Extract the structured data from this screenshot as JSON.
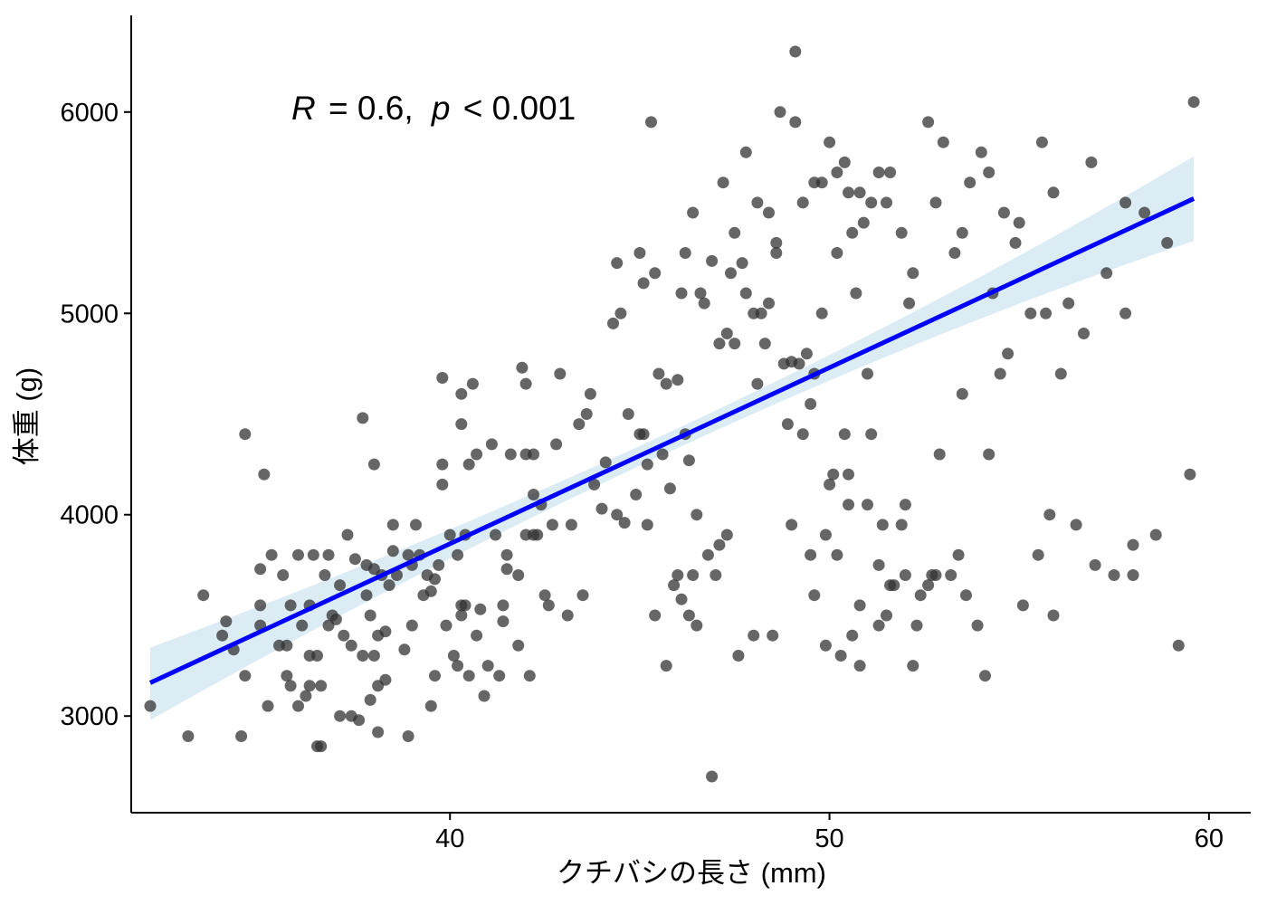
{
  "chart_data": {
    "type": "scatter",
    "title": "",
    "xlabel": "クチバシの長さ (mm)",
    "ylabel": "体重 (g)",
    "xlim": [
      31.6,
      61.1
    ],
    "ylim": [
      2520,
      6480
    ],
    "xticks": [
      40,
      50,
      60
    ],
    "yticks": [
      3000,
      4000,
      5000,
      6000
    ],
    "grid": false,
    "legend": "none",
    "annotation": {
      "r_label": "R",
      "r_value": "= 0.6,",
      "p_label": "p",
      "p_value": "< 0.001"
    },
    "colors": {
      "points": "#333333",
      "regression_line": "#0000ff",
      "confidence_band": "#dcecf4"
    },
    "regression": {
      "x_range": [
        32.1,
        59.6
      ],
      "y_at_start": 3165,
      "y_at_end": 5570,
      "band_lower_start": 2980,
      "band_upper_start": 3340,
      "band_lower_end": 5360,
      "band_upper_end": 5780
    },
    "points": [
      [
        32.1,
        3050
      ],
      [
        33.1,
        2900
      ],
      [
        33.5,
        3600
      ],
      [
        34.1,
        3470
      ],
      [
        34,
        3400
      ],
      [
        34.3,
        3330
      ],
      [
        34.5,
        2900
      ],
      [
        34.6,
        4400
      ],
      [
        34.6,
        3200
      ],
      [
        35,
        3730
      ],
      [
        35,
        3450
      ],
      [
        35.1,
        4200
      ],
      [
        35.2,
        3050
      ],
      [
        35.3,
        3800
      ],
      [
        35.5,
        3350
      ],
      [
        35.6,
        3700
      ],
      [
        35.7,
        3200
      ],
      [
        35.7,
        3350
      ],
      [
        35.8,
        3550
      ],
      [
        35.8,
        3150
      ],
      [
        36,
        3800
      ],
      [
        36,
        3050
      ],
      [
        36.1,
        3450
      ],
      [
        36.2,
        3100
      ],
      [
        36.3,
        3150
      ],
      [
        36.3,
        3550
      ],
      [
        36.3,
        3300
      ],
      [
        36.4,
        3800
      ],
      [
        36.5,
        2850
      ],
      [
        36.6,
        3150
      ],
      [
        36.6,
        2850
      ],
      [
        36.7,
        3700
      ],
      [
        36.8,
        3450
      ],
      [
        36.8,
        3800
      ],
      [
        36.9,
        3500
      ],
      [
        37,
        3480
      ],
      [
        37.1,
        3000
      ],
      [
        37.2,
        3400
      ],
      [
        37.3,
        3900
      ],
      [
        37.4,
        3350
      ],
      [
        37.4,
        3000
      ],
      [
        37.5,
        3780
      ],
      [
        37.6,
        2980
      ],
      [
        37.7,
        4480
      ],
      [
        37.7,
        3300
      ],
      [
        37.8,
        3600
      ],
      [
        37.8,
        3750
      ],
      [
        37.9,
        3500
      ],
      [
        37.9,
        3080
      ],
      [
        38,
        4250
      ],
      [
        38,
        3730
      ],
      [
        38,
        3300
      ],
      [
        38.1,
        3400
      ],
      [
        38.1,
        3150
      ],
      [
        38.1,
        2920
      ],
      [
        38.2,
        3700
      ],
      [
        38.3,
        3180
      ],
      [
        38.3,
        3420
      ],
      [
        38.5,
        3950
      ],
      [
        38.5,
        3820
      ],
      [
        38.6,
        3700
      ],
      [
        38.8,
        3330
      ],
      [
        38.9,
        3800
      ],
      [
        38.9,
        2900
      ],
      [
        39,
        3450
      ],
      [
        39,
        3750
      ],
      [
        39.1,
        3950
      ],
      [
        39.2,
        3800
      ],
      [
        39.3,
        3600
      ],
      [
        39.4,
        3700
      ],
      [
        39.5,
        3050
      ],
      [
        39.5,
        3620
      ],
      [
        39.6,
        3680
      ],
      [
        39.7,
        3750
      ],
      [
        39.8,
        4680
      ],
      [
        39.8,
        4250
      ],
      [
        39.8,
        4150
      ],
      [
        39.9,
        3450
      ],
      [
        40.1,
        3300
      ],
      [
        40.2,
        3250
      ],
      [
        40.2,
        3800
      ],
      [
        40.3,
        3550
      ],
      [
        40.3,
        3500
      ],
      [
        40.3,
        4450
      ],
      [
        40.3,
        4600
      ],
      [
        40.4,
        3900
      ],
      [
        40.4,
        3550
      ],
      [
        40.5,
        4250
      ],
      [
        40.5,
        3200
      ],
      [
        40.6,
        4650
      ],
      [
        40.7,
        3400
      ],
      [
        40.7,
        4300
      ],
      [
        40.8,
        3530
      ],
      [
        40.9,
        3100
      ],
      [
        41,
        3250
      ],
      [
        41.1,
        4350
      ],
      [
        41.3,
        3200
      ],
      [
        41.4,
        3550
      ],
      [
        41.4,
        3470
      ],
      [
        41.5,
        3800
      ],
      [
        41.5,
        3730
      ],
      [
        41.6,
        4300
      ],
      [
        41.8,
        3700
      ],
      [
        41.8,
        3350
      ],
      [
        41.9,
        4730
      ],
      [
        42,
        4650
      ],
      [
        42,
        3900
      ],
      [
        42,
        4300
      ],
      [
        42.1,
        3200
      ],
      [
        42.2,
        4300
      ],
      [
        42.2,
        3900
      ],
      [
        42.2,
        4100
      ],
      [
        42.3,
        3900
      ],
      [
        42.4,
        4050
      ],
      [
        42.5,
        3600
      ],
      [
        42.6,
        3550
      ],
      [
        42.8,
        4350
      ],
      [
        42.9,
        4700
      ],
      [
        43.2,
        3950
      ],
      [
        43.4,
        4450
      ],
      [
        43.5,
        3600
      ],
      [
        43.6,
        4500
      ],
      [
        43.7,
        4600
      ],
      [
        43.8,
        4150
      ],
      [
        44,
        4030
      ],
      [
        44.1,
        4260
      ],
      [
        44.3,
        4950
      ],
      [
        44.5,
        5000
      ],
      [
        44.6,
        3960
      ],
      [
        44.7,
        4500
      ],
      [
        44.9,
        4100
      ],
      [
        45,
        4400
      ],
      [
        45.1,
        4400
      ],
      [
        45.2,
        4250
      ],
      [
        45.4,
        3500
      ],
      [
        45.5,
        4700
      ],
      [
        45.6,
        4300
      ],
      [
        45.7,
        4650
      ],
      [
        45.8,
        4130
      ],
      [
        46,
        4670
      ],
      [
        46.1,
        3580
      ],
      [
        46.2,
        4400
      ],
      [
        46.3,
        4270
      ],
      [
        46.5,
        4000
      ],
      [
        46.6,
        5100
      ],
      [
        46.9,
        5260
      ],
      [
        47.1,
        4850
      ],
      [
        47.3,
        4900
      ],
      [
        47.5,
        4850
      ],
      [
        47.7,
        5250
      ],
      [
        47.8,
        5100
      ],
      [
        48,
        5000
      ],
      [
        48.2,
        5000
      ],
      [
        48.3,
        4850
      ],
      [
        48.4,
        5050
      ],
      [
        48.6,
        5300
      ],
      [
        48.8,
        4750
      ],
      [
        49,
        4760
      ],
      [
        49.1,
        5950
      ],
      [
        49.2,
        4750
      ],
      [
        49.4,
        4800
      ],
      [
        49.5,
        4550
      ],
      [
        49.6,
        4700
      ],
      [
        49.8,
        5000
      ],
      [
        50,
        4150
      ],
      [
        50.1,
        4200
      ],
      [
        50.2,
        5300
      ],
      [
        50.4,
        4400
      ],
      [
        50.5,
        4200
      ],
      [
        50.7,
        5100
      ],
      [
        50.8,
        3250
      ],
      [
        51,
        4700
      ],
      [
        51.1,
        4400
      ],
      [
        51.3,
        3450
      ],
      [
        51.5,
        3500
      ],
      [
        51.7,
        3650
      ],
      [
        52,
        3700
      ],
      [
        52.2,
        3250
      ],
      [
        52.4,
        3600
      ],
      [
        52.6,
        3650
      ],
      [
        52.7,
        3700
      ],
      [
        52.9,
        4300
      ],
      [
        53.2,
        3700
      ],
      [
        53.4,
        3800
      ],
      [
        53.6,
        3600
      ],
      [
        53.9,
        3450
      ],
      [
        54.1,
        3200
      ],
      [
        54.3,
        5100
      ],
      [
        54.5,
        4700
      ],
      [
        54.7,
        4800
      ],
      [
        54.9,
        5350
      ],
      [
        55.1,
        3550
      ],
      [
        55.3,
        5000
      ],
      [
        55.5,
        3800
      ],
      [
        55.7,
        5000
      ],
      [
        55.9,
        3500
      ],
      [
        56.1,
        4700
      ],
      [
        56.3,
        5050
      ],
      [
        56.5,
        3950
      ],
      [
        56.7,
        4900
      ],
      [
        57,
        3750
      ],
      [
        57.3,
        5200
      ],
      [
        57.5,
        3700
      ],
      [
        57.8,
        5000
      ],
      [
        58,
        3850
      ],
      [
        58.3,
        5500
      ],
      [
        58.6,
        3900
      ],
      [
        58.9,
        5350
      ],
      [
        59.2,
        3350
      ],
      [
        59.5,
        4200
      ],
      [
        35,
        3550
      ],
      [
        36.5,
        3300
      ],
      [
        37.1,
        3650
      ],
      [
        38.4,
        3650
      ],
      [
        39.6,
        3200
      ],
      [
        40,
        3900
      ],
      [
        41.2,
        3900
      ],
      [
        42.7,
        3950
      ],
      [
        43.1,
        3500
      ],
      [
        44.4,
        4000
      ],
      [
        45.1,
        5150
      ],
      [
        45.4,
        5200
      ],
      [
        46.2,
        5300
      ],
      [
        46.4,
        5500
      ],
      [
        46.7,
        5050
      ],
      [
        47.2,
        5650
      ],
      [
        47.5,
        5400
      ],
      [
        47.8,
        5800
      ],
      [
        48.1,
        5550
      ],
      [
        48.4,
        5500
      ],
      [
        48.7,
        6000
      ],
      [
        49.3,
        5550
      ],
      [
        49.6,
        5650
      ],
      [
        50,
        5850
      ],
      [
        50.2,
        5700
      ],
      [
        50.4,
        5750
      ],
      [
        50.6,
        5400
      ],
      [
        50.8,
        5600
      ],
      [
        51.1,
        5550
      ],
      [
        51.3,
        5700
      ],
      [
        51.5,
        5550
      ],
      [
        51.9,
        5400
      ],
      [
        52.2,
        5200
      ],
      [
        52.6,
        5950
      ],
      [
        53,
        5850
      ],
      [
        53.3,
        5300
      ],
      [
        53.7,
        5650
      ],
      [
        54,
        5800
      ],
      [
        54.2,
        5700
      ],
      [
        55,
        5450
      ],
      [
        55.6,
        5850
      ],
      [
        55.9,
        5600
      ],
      [
        56.9,
        5750
      ],
      [
        57.8,
        5550
      ],
      [
        59.6,
        6050
      ],
      [
        49.1,
        6300
      ],
      [
        50.5,
        5600
      ],
      [
        52.8,
        5550
      ],
      [
        54.6,
        5500
      ],
      [
        45.3,
        5950
      ],
      [
        45,
        5300
      ],
      [
        46.1,
        5100
      ],
      [
        47.4,
        5200
      ],
      [
        48.6,
        5350
      ],
      [
        49.8,
        5650
      ],
      [
        50.9,
        5450
      ],
      [
        51.6,
        5700
      ],
      [
        52.1,
        5050
      ],
      [
        53.5,
        5400
      ],
      [
        44.4,
        5250
      ],
      [
        45.2,
        3950
      ],
      [
        46,
        3700
      ],
      [
        46.5,
        3450
      ],
      [
        46.9,
        2700
      ],
      [
        47.3,
        3900
      ],
      [
        48,
        3400
      ],
      [
        48.5,
        3400
      ],
      [
        49,
        3950
      ],
      [
        49.5,
        3800
      ],
      [
        49.9,
        3350
      ],
      [
        50.2,
        3800
      ],
      [
        50.6,
        3400
      ],
      [
        51,
        4050
      ],
      [
        51.4,
        3950
      ],
      [
        51.9,
        3950
      ],
      [
        52,
        4050
      ],
      [
        52.3,
        3450
      ],
      [
        52.8,
        3700
      ],
      [
        53.5,
        4600
      ],
      [
        54.2,
        4300
      ],
      [
        55.8,
        4000
      ],
      [
        58,
        3700
      ],
      [
        47.1,
        3850
      ],
      [
        47.6,
        3300
      ],
      [
        48.1,
        4650
      ],
      [
        48.9,
        4450
      ],
      [
        49.3,
        4400
      ],
      [
        50.5,
        4050
      ],
      [
        50.8,
        3550
      ],
      [
        51.6,
        3650
      ],
      [
        46.8,
        3800
      ],
      [
        46.3,
        3500
      ],
      [
        45.7,
        3250
      ],
      [
        45.9,
        3650
      ],
      [
        46.4,
        3700
      ],
      [
        47,
        3700
      ],
      [
        49.6,
        3600
      ],
      [
        49.9,
        3900
      ],
      [
        50.3,
        3300
      ],
      [
        51.3,
        3750
      ]
    ]
  }
}
